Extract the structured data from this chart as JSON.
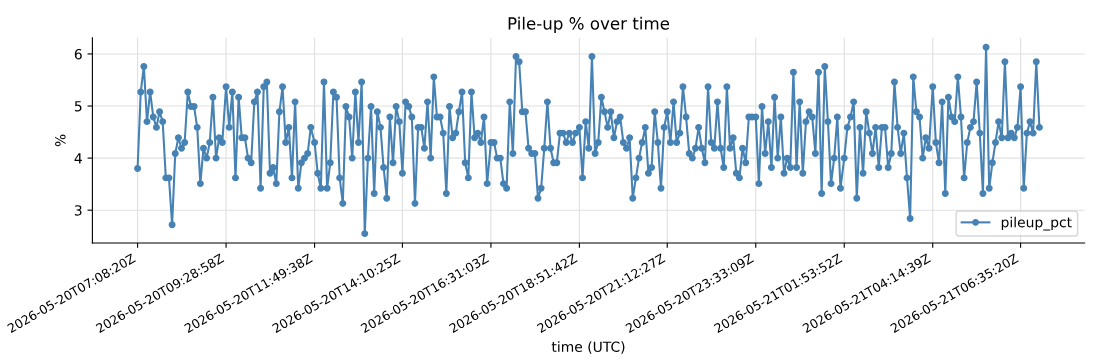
{
  "chart_data": {
    "type": "line",
    "title": "Pile-up % over time",
    "xlabel": "time (UTC)",
    "ylabel": "%",
    "x": [
      "2026-05-20T07:08",
      "2026-05-20T07:13",
      "2026-05-20T07:18",
      "2026-05-20T07:23",
      "2026-05-20T07:28",
      "2026-05-20T07:33",
      "2026-05-20T07:38",
      "2026-05-20T07:43",
      "2026-05-20T07:48",
      "2026-05-20T07:53",
      "2026-05-20T07:58",
      "2026-05-20T08:03",
      "2026-05-20T08:08",
      "2026-05-20T08:13",
      "2026-05-20T08:18",
      "2026-05-20T08:23",
      "2026-05-20T08:28",
      "2026-05-20T08:33",
      "2026-05-20T08:38",
      "2026-05-20T08:43",
      "2026-05-20T08:48",
      "2026-05-20T08:53",
      "2026-05-20T08:58",
      "2026-05-20T09:03",
      "2026-05-20T09:08",
      "2026-05-20T09:13",
      "2026-05-20T09:18",
      "2026-05-20T09:23",
      "2026-05-20T09:29",
      "2026-05-20T09:34",
      "2026-05-20T09:39",
      "2026-05-20T09:44",
      "2026-05-20T09:49",
      "2026-05-20T09:54",
      "2026-05-20T09:59",
      "2026-05-20T10:04",
      "2026-05-20T10:09",
      "2026-05-20T10:14",
      "2026-05-20T10:19",
      "2026-05-20T10:24",
      "2026-05-20T10:29",
      "2026-05-20T10:34",
      "2026-05-20T10:39",
      "2026-05-20T10:44",
      "2026-05-20T10:49",
      "2026-05-20T10:54",
      "2026-05-20T10:59",
      "2026-05-20T11:04",
      "2026-05-20T11:09",
      "2026-05-20T11:14",
      "2026-05-20T11:19",
      "2026-05-20T11:24",
      "2026-05-20T11:29",
      "2026-05-20T11:34",
      "2026-05-20T11:39",
      "2026-05-20T11:44",
      "2026-05-20T11:50",
      "2026-05-20T11:55",
      "2026-05-20T12:00",
      "2026-05-20T12:05",
      "2026-05-20T12:10",
      "2026-05-20T12:15",
      "2026-05-20T12:20",
      "2026-05-20T12:25",
      "2026-05-20T12:30",
      "2026-05-20T12:35",
      "2026-05-20T12:40",
      "2026-05-20T12:45",
      "2026-05-20T12:50",
      "2026-05-20T12:55",
      "2026-05-20T13:00",
      "2026-05-20T13:05",
      "2026-05-20T13:10",
      "2026-05-20T13:15",
      "2026-05-20T13:20",
      "2026-05-20T13:25",
      "2026-05-20T13:30",
      "2026-05-20T13:35",
      "2026-05-20T13:40",
      "2026-05-20T13:45",
      "2026-05-20T13:50",
      "2026-05-20T13:55",
      "2026-05-20T14:00",
      "2026-05-20T14:05",
      "2026-05-20T14:10",
      "2026-05-20T14:15",
      "2026-05-20T14:20",
      "2026-05-20T14:25",
      "2026-05-20T14:30",
      "2026-05-20T14:35",
      "2026-05-20T14:40",
      "2026-05-20T14:45",
      "2026-05-20T14:50",
      "2026-05-20T14:55",
      "2026-05-20T15:00",
      "2026-05-20T15:05",
      "2026-05-20T15:10",
      "2026-05-20T15:15",
      "2026-05-20T15:20",
      "2026-05-20T15:25",
      "2026-05-20T15:30",
      "2026-05-20T15:35",
      "2026-05-20T15:40",
      "2026-05-20T15:45",
      "2026-05-20T15:50",
      "2026-05-20T15:55",
      "2026-05-20T16:00",
      "2026-05-20T16:05",
      "2026-05-20T16:10",
      "2026-05-20T16:15",
      "2026-05-20T16:20",
      "2026-05-20T16:25",
      "2026-05-20T16:31",
      "2026-05-20T16:36",
      "2026-05-20T16:41",
      "2026-05-20T16:46",
      "2026-05-20T16:51",
      "2026-05-20T16:56",
      "2026-05-20T17:01",
      "2026-05-20T17:06",
      "2026-05-20T17:11",
      "2026-05-20T17:16",
      "2026-05-20T17:21",
      "2026-05-20T17:26",
      "2026-05-20T17:31",
      "2026-05-20T17:36",
      "2026-05-20T17:41",
      "2026-05-20T17:46",
      "2026-05-20T17:51",
      "2026-05-20T17:56",
      "2026-05-20T18:01",
      "2026-05-20T18:06",
      "2026-05-20T18:11",
      "2026-05-20T18:16",
      "2026-05-20T18:21",
      "2026-05-20T18:26",
      "2026-05-20T18:31",
      "2026-05-20T18:36",
      "2026-05-20T18:41",
      "2026-05-20T18:46",
      "2026-05-20T18:52",
      "2026-05-20T18:57",
      "2026-05-20T19:02",
      "2026-05-20T19:07",
      "2026-05-20T19:12",
      "2026-05-20T19:17",
      "2026-05-20T19:22",
      "2026-05-20T19:27",
      "2026-05-20T19:32",
      "2026-05-20T19:37",
      "2026-05-20T19:42",
      "2026-05-20T19:47",
      "2026-05-20T19:52",
      "2026-05-20T19:57",
      "2026-05-20T20:02",
      "2026-05-20T20:07",
      "2026-05-20T20:12",
      "2026-05-20T20:17",
      "2026-05-20T20:22",
      "2026-05-20T20:27",
      "2026-05-20T20:32",
      "2026-05-20T20:37",
      "2026-05-20T20:42",
      "2026-05-20T20:47",
      "2026-05-20T20:52",
      "2026-05-20T20:57",
      "2026-05-20T21:02",
      "2026-05-20T21:07",
      "2026-05-20T21:12",
      "2026-05-20T21:17",
      "2026-05-20T21:22",
      "2026-05-20T21:27",
      "2026-05-20T21:32",
      "2026-05-20T21:37",
      "2026-05-20T21:42",
      "2026-05-20T21:47",
      "2026-05-20T21:52",
      "2026-05-20T21:57",
      "2026-05-20T22:02",
      "2026-05-20T22:07",
      "2026-05-20T22:12",
      "2026-05-20T22:17",
      "2026-05-20T22:22",
      "2026-05-20T22:27",
      "2026-05-20T22:32",
      "2026-05-20T22:37",
      "2026-05-20T22:42",
      "2026-05-20T22:47",
      "2026-05-20T22:52",
      "2026-05-20T22:57",
      "2026-05-20T23:02",
      "2026-05-20T23:07",
      "2026-05-20T23:12",
      "2026-05-20T23:17",
      "2026-05-20T23:22",
      "2026-05-20T23:27",
      "2026-05-20T23:33",
      "2026-05-20T23:38",
      "2026-05-20T23:43",
      "2026-05-20T23:48",
      "2026-05-20T23:53",
      "2026-05-20T23:58",
      "2026-05-21T00:03",
      "2026-05-21T00:08",
      "2026-05-21T00:13",
      "2026-05-21T00:18",
      "2026-05-21T00:23",
      "2026-05-21T00:28",
      "2026-05-21T00:33",
      "2026-05-21T00:38",
      "2026-05-21T00:43",
      "2026-05-21T00:48",
      "2026-05-21T00:53",
      "2026-05-21T00:58",
      "2026-05-21T01:03",
      "2026-05-21T01:08",
      "2026-05-21T01:13",
      "2026-05-21T01:18",
      "2026-05-21T01:23",
      "2026-05-21T01:28",
      "2026-05-21T01:33",
      "2026-05-21T01:38",
      "2026-05-21T01:43",
      "2026-05-21T01:48",
      "2026-05-21T01:54",
      "2026-05-21T01:59",
      "2026-05-21T02:04",
      "2026-05-21T02:09",
      "2026-05-21T02:14",
      "2026-05-21T02:19",
      "2026-05-21T02:24",
      "2026-05-21T02:29",
      "2026-05-21T02:34",
      "2026-05-21T02:39",
      "2026-05-21T02:44",
      "2026-05-21T02:49",
      "2026-05-21T02:54",
      "2026-05-21T02:59",
      "2026-05-21T03:04",
      "2026-05-21T03:09",
      "2026-05-21T03:14",
      "2026-05-21T03:19",
      "2026-05-21T03:24",
      "2026-05-21T03:29",
      "2026-05-21T03:34",
      "2026-05-21T03:39",
      "2026-05-21T03:44",
      "2026-05-21T03:49",
      "2026-05-21T03:54",
      "2026-05-21T03:59",
      "2026-05-21T04:04",
      "2026-05-21T04:09",
      "2026-05-21T04:15",
      "2026-05-21T04:20",
      "2026-05-21T04:25",
      "2026-05-21T04:30",
      "2026-05-21T04:35",
      "2026-05-21T04:40",
      "2026-05-21T04:45",
      "2026-05-21T04:50",
      "2026-05-21T04:55",
      "2026-05-21T05:00",
      "2026-05-21T05:05",
      "2026-05-21T05:10",
      "2026-05-21T05:15",
      "2026-05-21T05:20",
      "2026-05-21T05:25",
      "2026-05-21T05:30",
      "2026-05-21T05:35",
      "2026-05-21T05:40",
      "2026-05-21T05:45",
      "2026-05-21T05:50",
      "2026-05-21T05:55",
      "2026-05-21T06:00",
      "2026-05-21T06:05",
      "2026-05-21T06:10",
      "2026-05-21T06:15",
      "2026-05-21T06:20",
      "2026-05-21T06:25",
      "2026-05-21T06:30",
      "2026-05-21T06:35",
      "2026-05-21T06:40",
      "2026-05-21T06:45",
      "2026-05-21T06:50",
      "2026-05-21T06:55",
      "2026-05-21T07:00",
      "2026-05-21T07:05"
    ],
    "series": [
      {
        "name": "pileup_pct",
        "color": "#4682b4",
        "values": [
          3.8,
          5.27,
          5.76,
          4.7,
          5.27,
          4.79,
          4.59,
          4.89,
          4.7,
          3.62,
          3.62,
          2.72,
          4.09,
          4.39,
          4.19,
          4.3,
          5.27,
          4.99,
          4.99,
          4.59,
          3.51,
          4.19,
          4.0,
          4.3,
          5.17,
          4.0,
          4.39,
          4.3,
          5.37,
          4.59,
          5.27,
          3.62,
          5.17,
          4.39,
          4.39,
          4.0,
          3.91,
          5.08,
          5.27,
          3.42,
          5.37,
          5.46,
          3.71,
          3.82,
          3.51,
          4.89,
          5.37,
          4.3,
          4.59,
          3.62,
          5.08,
          3.42,
          3.91,
          4.0,
          4.09,
          4.59,
          4.3,
          3.71,
          3.42,
          5.46,
          3.42,
          3.91,
          5.27,
          5.17,
          3.62,
          3.13,
          4.99,
          4.79,
          4.0,
          5.27,
          4.3,
          5.46,
          2.55,
          4.0,
          4.99,
          3.32,
          4.89,
          4.59,
          3.82,
          3.23,
          4.79,
          3.91,
          4.99,
          4.7,
          3.71,
          5.08,
          4.99,
          4.79,
          3.13,
          4.59,
          4.59,
          4.19,
          5.08,
          4.0,
          5.56,
          4.79,
          4.79,
          4.48,
          3.32,
          4.99,
          4.39,
          4.48,
          4.89,
          5.27,
          3.91,
          3.62,
          5.27,
          4.39,
          4.48,
          4.3,
          4.79,
          3.51,
          4.3,
          4.3,
          4.0,
          4.0,
          3.51,
          3.42,
          5.08,
          4.09,
          5.95,
          5.85,
          4.89,
          4.89,
          4.19,
          4.09,
          4.09,
          3.23,
          3.42,
          4.19,
          5.08,
          4.19,
          3.91,
          3.91,
          4.48,
          4.48,
          4.3,
          4.48,
          4.3,
          4.48,
          4.59,
          3.62,
          4.7,
          4.19,
          5.95,
          4.09,
          4.3,
          5.17,
          4.89,
          4.59,
          4.89,
          4.39,
          4.7,
          4.79,
          4.3,
          4.19,
          4.39,
          3.23,
          3.62,
          4.0,
          4.3,
          4.59,
          3.71,
          3.82,
          4.89,
          4.3,
          3.42,
          4.59,
          4.89,
          4.3,
          5.08,
          4.3,
          4.48,
          5.37,
          4.79,
          4.09,
          4.0,
          4.19,
          4.59,
          4.19,
          3.91,
          5.37,
          4.3,
          4.19,
          5.08,
          4.19,
          3.82,
          5.37,
          4.19,
          4.39,
          3.71,
          3.62,
          4.19,
          3.91,
          4.79,
          4.79,
          4.79,
          3.51,
          4.99,
          4.09,
          4.7,
          3.82,
          5.17,
          4.0,
          4.79,
          3.71,
          4.0,
          3.82,
          5.65,
          3.82,
          5.08,
          3.71,
          4.7,
          4.89,
          4.79,
          4.09,
          5.65,
          3.32,
          5.76,
          4.7,
          3.51,
          4.0,
          4.79,
          3.42,
          4.0,
          4.59,
          4.79,
          5.08,
          3.23,
          4.59,
          3.71,
          4.89,
          4.48,
          4.09,
          4.59,
          3.82,
          4.59,
          4.59,
          3.82,
          4.09,
          5.46,
          4.59,
          4.09,
          4.48,
          3.62,
          2.84,
          5.56,
          4.89,
          4.79,
          4.0,
          4.39,
          4.19,
          5.37,
          4.3,
          3.91,
          5.08,
          3.32,
          5.17,
          4.79,
          4.7,
          5.56,
          4.79,
          3.62,
          4.3,
          4.59,
          4.7,
          5.46,
          4.48,
          3.32,
          6.13,
          3.42,
          3.91,
          4.3,
          4.7,
          4.39,
          5.85,
          4.39,
          4.48,
          4.39,
          4.59,
          5.37,
          3.42,
          4.48,
          4.7,
          4.48,
          5.85,
          4.59
        ]
      }
    ],
    "xlim": [
      "2026-05-20T05:56",
      "2026-05-21T08:17"
    ],
    "xticks": [
      {
        "value": "2026-05-20T07:08",
        "label": "2026-05-20T07:08:20Z"
      },
      {
        "value": "2026-05-20T09:29",
        "label": "2026-05-20T09:28:58Z"
      },
      {
        "value": "2026-05-20T11:50",
        "label": "2026-05-20T11:49:38Z"
      },
      {
        "value": "2026-05-20T14:10",
        "label": "2026-05-20T14:10:25Z"
      },
      {
        "value": "2026-05-20T16:31",
        "label": "2026-05-20T16:31:03Z"
      },
      {
        "value": "2026-05-20T18:52",
        "label": "2026-05-20T18:51:42Z"
      },
      {
        "value": "2026-05-20T21:12",
        "label": "2026-05-20T21:12:27Z"
      },
      {
        "value": "2026-05-20T23:33",
        "label": "2026-05-20T23:33:09Z"
      },
      {
        "value": "2026-05-21T01:54",
        "label": "2026-05-21T01:53:52Z"
      },
      {
        "value": "2026-05-21T04:15",
        "label": "2026-05-21T04:14:39Z"
      },
      {
        "value": "2026-05-21T06:35",
        "label": "2026-05-21T06:35:20Z"
      }
    ],
    "ylim": [
      2.37,
      6.31
    ],
    "yticks": [
      3,
      4,
      5,
      6
    ],
    "grid": true,
    "legend": "lower right",
    "marker": "circle",
    "line_style": "solid"
  }
}
